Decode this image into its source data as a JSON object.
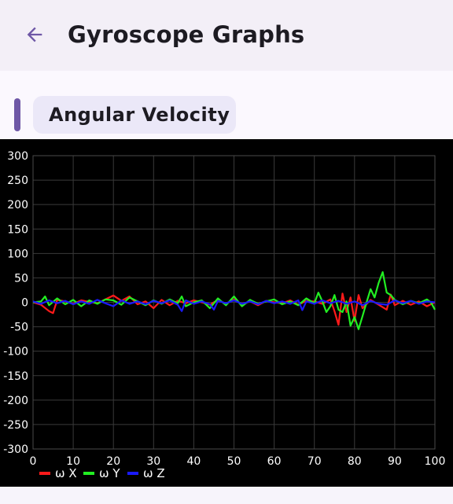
{
  "appbar": {
    "title": "Gyroscope Graphs",
    "back_icon": "arrow-back-icon",
    "accent_color": "#6e57a6"
  },
  "section": {
    "label": "Angular Velocity",
    "accent_color": "#6e57a6",
    "chip_color": "#ebe8f8"
  },
  "chart_data": {
    "type": "line",
    "background": "#000000",
    "grid": true,
    "grid_color": "#3a3a3a",
    "legend_position": "bottom-left",
    "xlim": [
      0,
      100
    ],
    "ylim": [
      -300,
      300
    ],
    "x_ticks": [
      0,
      10,
      20,
      30,
      40,
      50,
      60,
      70,
      80,
      90,
      100
    ],
    "y_ticks": [
      300,
      250,
      200,
      150,
      100,
      50,
      0,
      -50,
      -100,
      -150,
      -200,
      -250,
      -300
    ],
    "series": [
      {
        "name": "ω X",
        "color": "#ff1a1a",
        "x": [
          0,
          2,
          4,
          5,
          6,
          8,
          10,
          12,
          14,
          16,
          18,
          20,
          22,
          24,
          26,
          28,
          30,
          32,
          34,
          36,
          38,
          40,
          42,
          44,
          46,
          48,
          50,
          52,
          54,
          56,
          58,
          60,
          62,
          64,
          66,
          68,
          70,
          72,
          74,
          75,
          76,
          77,
          78,
          79,
          80,
          81,
          82,
          84,
          86,
          88,
          89,
          90,
          92,
          94,
          96,
          98,
          99,
          100
        ],
        "values": [
          0,
          -5,
          -18,
          -22,
          5,
          2,
          -3,
          4,
          1,
          -2,
          6,
          14,
          3,
          12,
          -4,
          2,
          -12,
          5,
          -6,
          3,
          -2,
          4,
          0,
          -5,
          5,
          -3,
          6,
          -4,
          2,
          -6,
          3,
          0,
          -2,
          4,
          -5,
          3,
          2,
          -3,
          6,
          -18,
          -46,
          18,
          -20,
          10,
          -38,
          15,
          -12,
          5,
          -5,
          -15,
          16,
          -6,
          3,
          -5,
          2,
          -8,
          -4,
          0
        ]
      },
      {
        "name": "ω Y",
        "color": "#22ee22",
        "x": [
          0,
          2,
          3,
          4,
          6,
          8,
          10,
          12,
          14,
          16,
          18,
          20,
          22,
          24,
          26,
          28,
          30,
          32,
          34,
          36,
          37,
          38,
          40,
          42,
          44,
          46,
          48,
          50,
          52,
          54,
          56,
          58,
          60,
          62,
          64,
          66,
          68,
          70,
          71,
          72,
          73,
          74,
          75,
          76,
          77,
          78,
          79,
          80,
          81,
          82,
          83,
          84,
          85,
          86,
          87,
          88,
          89,
          90,
          92,
          94,
          96,
          98,
          99,
          100
        ],
        "values": [
          0,
          2,
          12,
          -6,
          8,
          -4,
          5,
          -8,
          4,
          -3,
          6,
          4,
          -5,
          10,
          2,
          -6,
          4,
          -3,
          6,
          -2,
          12,
          -8,
          0,
          4,
          -12,
          8,
          -6,
          12,
          -8,
          5,
          -3,
          2,
          6,
          -4,
          2,
          -6,
          8,
          -2,
          20,
          2,
          -20,
          -8,
          15,
          -15,
          -20,
          2,
          -48,
          -30,
          -55,
          -28,
          0,
          27,
          10,
          40,
          62,
          20,
          15,
          5,
          -4,
          3,
          -2,
          6,
          0,
          -15
        ]
      },
      {
        "name": "ω Z",
        "color": "#1a1aff",
        "x": [
          0,
          2,
          4,
          6,
          8,
          10,
          12,
          14,
          16,
          18,
          20,
          22,
          24,
          26,
          28,
          30,
          32,
          34,
          36,
          37,
          38,
          40,
          42,
          44,
          45,
          46,
          48,
          50,
          52,
          54,
          56,
          58,
          60,
          62,
          64,
          66,
          67,
          68,
          70,
          72,
          74,
          76,
          78,
          80,
          82,
          84,
          86,
          88,
          90,
          92,
          94,
          96,
          98,
          100
        ],
        "values": [
          2,
          -3,
          4,
          -2,
          3,
          -4,
          2,
          -3,
          5,
          -2,
          -8,
          4,
          -3,
          2,
          -4,
          3,
          -2,
          4,
          -5,
          -18,
          4,
          -3,
          2,
          -4,
          -15,
          3,
          -2,
          4,
          -3,
          2,
          -4,
          3,
          -2,
          2,
          -3,
          4,
          -16,
          2,
          -3,
          4,
          -2,
          3,
          -3,
          2,
          -6,
          3,
          -3,
          -5,
          4,
          -2,
          3,
          -3,
          2,
          0
        ]
      }
    ]
  }
}
